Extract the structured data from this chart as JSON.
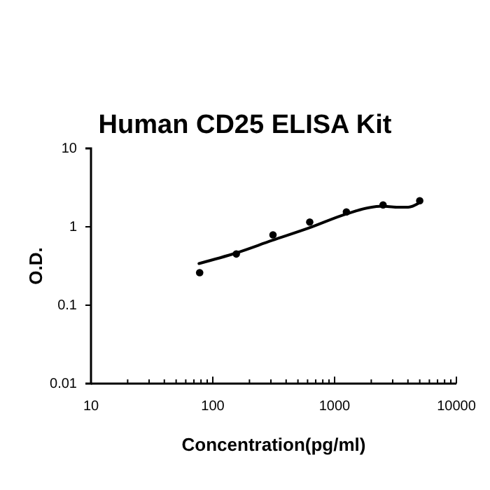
{
  "chart_data": {
    "type": "scatter",
    "title": "Human CD25 ELISA Kit",
    "xlabel": "Concentration(pg/ml)",
    "ylabel": "O.D.",
    "log": "xy",
    "grid": false,
    "xlim": [
      10,
      10000
    ],
    "ylim": [
      0.01,
      10
    ],
    "xticks": [
      10,
      {
        "value": 20,
        "label": null
      },
      {
        "value": 30,
        "label": null
      },
      {
        "value": 40,
        "label": null
      },
      {
        "value": 50,
        "label": null
      },
      {
        "value": 60,
        "label": null
      },
      {
        "value": 70,
        "label": null
      },
      {
        "value": 80,
        "label": null
      },
      {
        "value": 90,
        "label": null
      },
      100,
      {
        "value": 200,
        "label": null
      },
      {
        "value": 300,
        "label": null
      },
      {
        "value": 400,
        "label": null
      },
      {
        "value": 500,
        "label": null
      },
      {
        "value": 600,
        "label": null
      },
      {
        "value": 700,
        "label": null
      },
      {
        "value": 800,
        "label": null
      },
      {
        "value": 900,
        "label": null
      },
      1000,
      {
        "value": 2000,
        "label": null
      },
      {
        "value": 3000,
        "label": null
      },
      {
        "value": 4000,
        "label": null
      },
      {
        "value": 5000,
        "label": null
      },
      {
        "value": 6000,
        "label": null
      },
      {
        "value": 7000,
        "label": null
      },
      {
        "value": 8000,
        "label": null
      },
      {
        "value": 9000,
        "label": null
      },
      10000
    ],
    "yticks": [
      0.01,
      0.1,
      1,
      10
    ],
    "series": [
      {
        "color": "#000000",
        "marker": "circle",
        "x": [
          78,
          156,
          312,
          625,
          1250,
          2500,
          5000
        ],
        "values": [
          0.26,
          0.45,
          0.79,
          1.15,
          1.55,
          1.9,
          2.15
        ]
      },
      {
        "type": "line",
        "color": "#000000",
        "marker": "none",
        "line_style": "solid",
        "x": [
          77,
          153,
          307,
          610,
          1236,
          1905,
          2455,
          3236,
          4030,
          4932
        ],
        "values": [
          0.34,
          0.46,
          0.67,
          0.96,
          1.45,
          1.75,
          1.83,
          1.78,
          1.78,
          2.01
        ]
      }
    ]
  }
}
